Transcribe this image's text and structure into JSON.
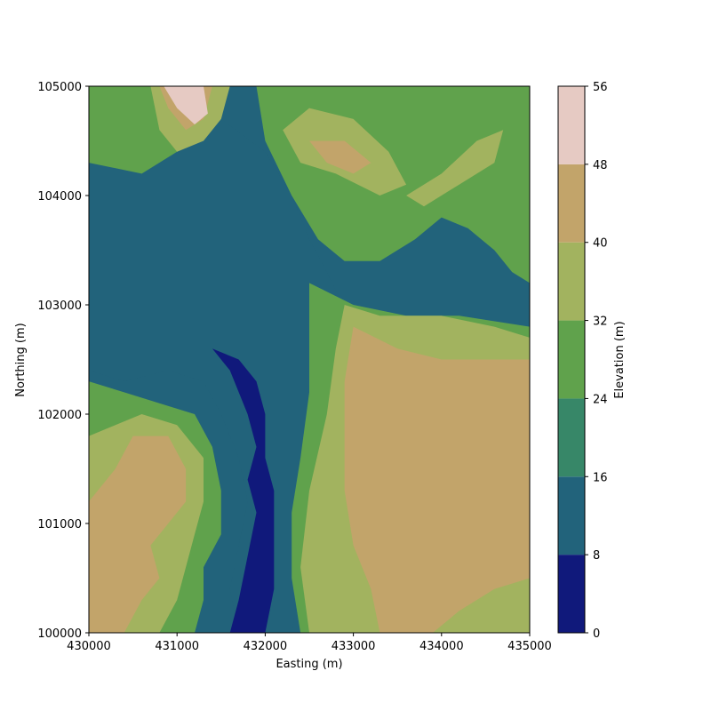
{
  "chart_data": {
    "type": "heatmap",
    "subtype": "filled-contour",
    "title": "",
    "xlabel": "Easting (m)",
    "ylabel": "Northing (m)",
    "xlim": [
      430000,
      435000
    ],
    "ylim": [
      100000,
      105000
    ],
    "xticks": [
      430000,
      431000,
      432000,
      433000,
      434000,
      435000
    ],
    "yticks": [
      100000,
      101000,
      102000,
      103000,
      104000,
      105000
    ],
    "colorbar": {
      "label": "Elevation (m)",
      "levels": [
        0,
        8,
        16,
        24,
        32,
        40,
        48,
        56
      ],
      "colors": [
        "#10197b",
        "#22637b",
        "#378768",
        "#60a24c",
        "#a2b35f",
        "#c2a46a",
        "#e6cac3"
      ]
    },
    "grid": false,
    "elevation_regions": [
      {
        "band": 1,
        "polygon": [
          [
            430000,
            102400
          ],
          [
            430400,
            102300
          ],
          [
            430900,
            102400
          ],
          [
            431300,
            102300
          ],
          [
            431500,
            102000
          ],
          [
            431700,
            101600
          ],
          [
            431800,
            101200
          ],
          [
            431700,
            100800
          ],
          [
            431600,
            100400
          ],
          [
            431700,
            100000
          ],
          [
            432300,
            100000
          ],
          [
            432400,
            100500
          ],
          [
            432300,
            101000
          ],
          [
            432500,
            101500
          ],
          [
            432700,
            102000
          ],
          [
            433000,
            102800
          ],
          [
            432700,
            103300
          ],
          [
            432500,
            103600
          ],
          [
            432300,
            104000
          ],
          [
            432000,
            104400
          ],
          [
            431500,
            104700
          ],
          [
            431200,
            105000
          ],
          [
            430000,
            105000
          ]
        ]
      },
      {
        "band": 3,
        "polygon": [
          [
            430000,
            104300
          ],
          [
            430600,
            104200
          ],
          [
            431000,
            104400
          ],
          [
            431300,
            104700
          ],
          [
            431600,
            105000
          ],
          [
            430000,
            105000
          ]
        ]
      },
      {
        "band": 3,
        "polygon": [
          [
            431900,
            105000
          ],
          [
            432000,
            104500
          ],
          [
            432300,
            104000
          ],
          [
            432600,
            103600
          ],
          [
            432900,
            103400
          ],
          [
            433300,
            103400
          ],
          [
            433700,
            103600
          ],
          [
            434000,
            103800
          ],
          [
            434300,
            103700
          ],
          [
            434600,
            103500
          ],
          [
            434800,
            103300
          ],
          [
            435000,
            103200
          ],
          [
            435000,
            105000
          ]
        ]
      },
      {
        "band": 3,
        "polygon": [
          [
            432500,
            103200
          ],
          [
            433000,
            103000
          ],
          [
            433600,
            102900
          ],
          [
            434200,
            102900
          ],
          [
            435000,
            102800
          ],
          [
            435000,
            100000
          ],
          [
            432400,
            100000
          ],
          [
            432300,
            100500
          ],
          [
            432300,
            101100
          ],
          [
            432400,
            101600
          ],
          [
            432500,
            102200
          ]
        ]
      },
      {
        "band": 4,
        "polygon": [
          [
            432900,
            103000
          ],
          [
            433300,
            102900
          ],
          [
            434000,
            102900
          ],
          [
            434600,
            102800
          ],
          [
            435000,
            102700
          ],
          [
            435000,
            100000
          ],
          [
            432500,
            100000
          ],
          [
            432400,
            100600
          ],
          [
            432500,
            101300
          ],
          [
            432700,
            102000
          ],
          [
            432800,
            102600
          ]
        ]
      },
      {
        "band": 5,
        "polygon": [
          [
            433000,
            102800
          ],
          [
            433500,
            102600
          ],
          [
            434000,
            102500
          ],
          [
            435000,
            102500
          ],
          [
            435000,
            100500
          ],
          [
            434600,
            100400
          ],
          [
            434200,
            100200
          ],
          [
            433900,
            100000
          ],
          [
            433300,
            100000
          ],
          [
            433200,
            100400
          ],
          [
            433000,
            100800
          ],
          [
            432900,
            101300
          ],
          [
            432900,
            101800
          ],
          [
            432900,
            102300
          ]
        ]
      },
      {
        "band": 3,
        "polygon": [
          [
            430000,
            102300
          ],
          [
            430400,
            102200
          ],
          [
            430800,
            102100
          ],
          [
            431200,
            102000
          ],
          [
            431400,
            101700
          ],
          [
            431500,
            101300
          ],
          [
            431500,
            100900
          ],
          [
            431300,
            100600
          ],
          [
            431300,
            100300
          ],
          [
            431200,
            100000
          ],
          [
            430000,
            100000
          ]
        ]
      },
      {
        "band": 4,
        "polygon": [
          [
            430000,
            101800
          ],
          [
            430300,
            101900
          ],
          [
            430600,
            102000
          ],
          [
            431000,
            101900
          ],
          [
            431300,
            101600
          ],
          [
            431300,
            101200
          ],
          [
            431200,
            100900
          ],
          [
            431100,
            100600
          ],
          [
            431000,
            100300
          ],
          [
            430800,
            100000
          ],
          [
            430000,
            100000
          ]
        ]
      },
      {
        "band": 5,
        "polygon": [
          [
            430000,
            101200
          ],
          [
            430300,
            101500
          ],
          [
            430500,
            101800
          ],
          [
            430900,
            101800
          ],
          [
            431100,
            101500
          ],
          [
            431100,
            101200
          ],
          [
            430900,
            101000
          ],
          [
            430700,
            100800
          ],
          [
            430800,
            100500
          ],
          [
            430600,
            100300
          ],
          [
            430400,
            100000
          ],
          [
            430000,
            100000
          ]
        ]
      },
      {
        "band": 4,
        "polygon": [
          [
            430700,
            105000
          ],
          [
            430800,
            104600
          ],
          [
            431000,
            104400
          ],
          [
            431300,
            104500
          ],
          [
            431500,
            104700
          ],
          [
            431600,
            105000
          ]
        ]
      },
      {
        "band": 5,
        "polygon": [
          [
            430800,
            105000
          ],
          [
            430900,
            104800
          ],
          [
            431100,
            104600
          ],
          [
            431300,
            104700
          ],
          [
            431400,
            105000
          ]
        ]
      },
      {
        "band": 6,
        "polygon": [
          [
            430850,
            105000
          ],
          [
            431000,
            104800
          ],
          [
            431200,
            104650
          ],
          [
            431350,
            104750
          ],
          [
            431300,
            105000
          ]
        ]
      },
      {
        "band": 4,
        "polygon": [
          [
            432200,
            104600
          ],
          [
            432500,
            104800
          ],
          [
            433000,
            104700
          ],
          [
            433400,
            104400
          ],
          [
            433600,
            104100
          ],
          [
            433300,
            104000
          ],
          [
            432800,
            104200
          ],
          [
            432400,
            104300
          ]
        ]
      },
      {
        "band": 5,
        "polygon": [
          [
            432500,
            104500
          ],
          [
            432900,
            104500
          ],
          [
            433200,
            104300
          ],
          [
            433000,
            104200
          ],
          [
            432700,
            104300
          ]
        ]
      },
      {
        "band": 4,
        "polygon": [
          [
            433600,
            104000
          ],
          [
            434000,
            104200
          ],
          [
            434400,
            104500
          ],
          [
            434700,
            104600
          ],
          [
            434600,
            104300
          ],
          [
            434200,
            104100
          ],
          [
            433800,
            103900
          ]
        ]
      },
      {
        "band": 0,
        "polygon": [
          [
            431400,
            102600
          ],
          [
            431600,
            102400
          ],
          [
            431800,
            102000
          ],
          [
            431900,
            101700
          ],
          [
            431800,
            101400
          ],
          [
            431900,
            101100
          ],
          [
            431800,
            100700
          ],
          [
            431700,
            100300
          ],
          [
            431600,
            100000
          ],
          [
            432000,
            100000
          ],
          [
            432100,
            100400
          ],
          [
            432100,
            100900
          ],
          [
            432100,
            101300
          ],
          [
            432000,
            101600
          ],
          [
            432000,
            102000
          ],
          [
            431900,
            102300
          ],
          [
            431700,
            102500
          ]
        ]
      }
    ]
  }
}
